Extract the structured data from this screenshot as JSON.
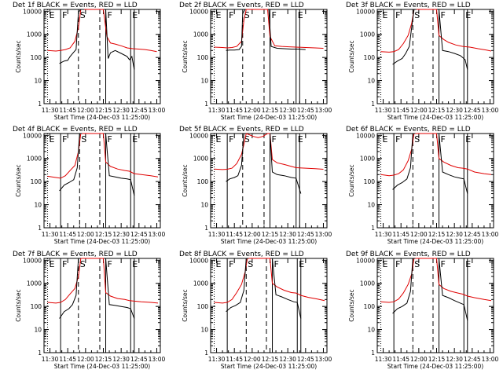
{
  "figure": {
    "background": "#ffffff",
    "series_colors": {
      "events": "#000000",
      "lld": "#e00000"
    },
    "y_axis_label": "Counts/sec",
    "x_axis_label": "Start Time (24-Dec-03 11:25:00)",
    "x_tick_labels": [
      "11:30",
      "11:45",
      "12:00",
      "12:15",
      "12:30",
      "12:45",
      "13:00"
    ],
    "y_tick_labels": [
      "1",
      "10",
      "100",
      "1000",
      "10000"
    ]
  },
  "chart_data": [
    {
      "type": "line",
      "title": "Det  1f  BLACK = Events, RED = LLD",
      "xlabel": "Start Time (24-Dec-03 11:25:00)",
      "ylabel": "Counts/sec",
      "xlim_minutes_after_start": [
        0,
        98
      ],
      "ylim": [
        1,
        12000
      ],
      "yscale": "log",
      "markers": [
        {
          "label": "E",
          "t": 3
        },
        {
          "label": "F",
          "t": 14
        },
        {
          "label": "S",
          "t": 29
        },
        {
          "label": "F",
          "t": 52
        },
        {
          "label": "E",
          "t": 73
        }
      ],
      "events": {
        "t": [
          13,
          17,
          20,
          22,
          25,
          27,
          29,
          31,
          33,
          34
        ],
        "v": [
          55,
          70,
          75,
          110,
          170,
          220,
          9000,
          12000,
          12000,
          12000
        ]
      },
      "events_b": {
        "t": [
          52,
          54,
          56,
          60,
          65,
          70,
          72,
          74,
          76
        ],
        "v": [
          12000,
          90,
          160,
          200,
          150,
          110,
          80,
          110,
          30
        ]
      },
      "lld": {
        "t": [
          3,
          10,
          14,
          18,
          22,
          26,
          29,
          31,
          50,
          53,
          56,
          60,
          65,
          70,
          75,
          80,
          85,
          90,
          95
        ],
        "v": [
          200,
          190,
          200,
          220,
          260,
          500,
          2000,
          12000,
          12000,
          800,
          420,
          380,
          320,
          260,
          240,
          230,
          220,
          200,
          180
        ]
      }
    },
    {
      "type": "line",
      "title": "Det  2f  BLACK = Events, RED = LLD",
      "xlabel": "Start Time (24-Dec-03 11:25:00)",
      "ylabel": "Counts/sec",
      "xlim_minutes_after_start": [
        0,
        98
      ],
      "ylim": [
        1,
        12000
      ],
      "yscale": "log",
      "markers": [
        {
          "label": "E",
          "t": 3
        },
        {
          "label": "F",
          "t": 14
        },
        {
          "label": "S",
          "t": 27
        },
        {
          "label": "F",
          "t": 50
        },
        {
          "label": "E",
          "t": 72
        }
      ],
      "events": {
        "t": [
          13,
          16,
          20,
          24,
          26,
          27,
          29
        ],
        "v": [
          200,
          210,
          210,
          220,
          300,
          8000,
          12000
        ]
      },
      "events_b": {
        "t": [
          49,
          51,
          56,
          62,
          68,
          74,
          80
        ],
        "v": [
          12000,
          300,
          250,
          240,
          230,
          230,
          220
        ]
      },
      "lld": {
        "t": [
          3,
          10,
          14,
          18,
          22,
          26,
          28,
          30,
          48,
          50,
          54,
          60,
          66,
          72,
          80,
          88,
          95
        ],
        "v": [
          280,
          270,
          260,
          270,
          300,
          500,
          4000,
          12000,
          12000,
          800,
          320,
          300,
          290,
          280,
          270,
          260,
          250
        ]
      }
    },
    {
      "type": "line",
      "title": "Det  3f  BLACK = Events, RED = LLD",
      "xlabel": "Start Time (24-Dec-03 11:25:00)",
      "ylabel": "Counts/sec",
      "xlim_minutes_after_start": [
        0,
        98
      ],
      "ylim": [
        1,
        12000
      ],
      "yscale": "log",
      "markers": [
        {
          "label": "E",
          "t": 3
        },
        {
          "label": "F",
          "t": 14
        },
        {
          "label": "S",
          "t": 30
        },
        {
          "label": "F",
          "t": 52
        },
        {
          "label": "E",
          "t": 73
        }
      ],
      "events": {
        "t": [
          13,
          17,
          21,
          24,
          27,
          29,
          31,
          33
        ],
        "v": [
          50,
          70,
          90,
          150,
          300,
          2000,
          12000,
          12000
        ]
      },
      "events_b": {
        "t": [
          52,
          55,
          60,
          65,
          70,
          72,
          74,
          76
        ],
        "v": [
          12000,
          200,
          180,
          150,
          120,
          100,
          80,
          30
        ]
      },
      "lld": {
        "t": [
          3,
          10,
          14,
          18,
          22,
          26,
          29,
          31,
          50,
          52,
          56,
          60,
          66,
          72,
          78,
          85,
          92,
          96
        ],
        "v": [
          180,
          170,
          180,
          220,
          400,
          900,
          3000,
          12000,
          12000,
          900,
          600,
          450,
          350,
          300,
          280,
          240,
          210,
          190
        ]
      }
    },
    {
      "type": "line",
      "title": "Det  4f  BLACK = Events, RED = LLD",
      "xlabel": "Start Time (24-Dec-03 11:25:00)",
      "ylabel": "Counts/sec",
      "xlim_minutes_after_start": [
        0,
        98
      ],
      "ylim": [
        1,
        12000
      ],
      "yscale": "log",
      "markers": [
        {
          "label": "E",
          "t": 3
        },
        {
          "label": "F",
          "t": 14
        },
        {
          "label": "S",
          "t": 30
        },
        {
          "label": "F",
          "t": 52
        },
        {
          "label": "E",
          "t": 73
        }
      ],
      "events": {
        "t": [
          13,
          17,
          21,
          25,
          28,
          30,
          32
        ],
        "v": [
          40,
          70,
          90,
          120,
          400,
          12000,
          12000
        ]
      },
      "events_b": {
        "t": [
          52,
          55,
          60,
          65,
          70,
          73,
          76
        ],
        "v": [
          12000,
          180,
          160,
          140,
          130,
          120,
          25
        ]
      },
      "lld": {
        "t": [
          3,
          10,
          14,
          18,
          22,
          26,
          29,
          31,
          50,
          52,
          56,
          62,
          68,
          72,
          76,
          82,
          90,
          96
        ],
        "v": [
          170,
          150,
          140,
          180,
          300,
          500,
          2000,
          12000,
          12000,
          700,
          450,
          350,
          300,
          280,
          220,
          200,
          180,
          160
        ]
      }
    },
    {
      "type": "line",
      "title": "Det  5f  BLACK = Events, RED = LLD",
      "xlabel": "Start Time (24-Dec-03 11:25:00)",
      "ylabel": "Counts/sec",
      "xlim_minutes_after_start": [
        0,
        98
      ],
      "ylim": [
        1,
        12000
      ],
      "yscale": "log",
      "markers": [
        {
          "label": "E",
          "t": 3
        },
        {
          "label": "F",
          "t": 14
        },
        {
          "label": "S",
          "t": 27
        },
        {
          "label": "F",
          "t": 50
        },
        {
          "label": "E",
          "t": 72
        }
      ],
      "events": {
        "t": [
          13,
          16,
          20,
          23,
          26,
          28,
          30
        ],
        "v": [
          100,
          130,
          150,
          180,
          500,
          12000,
          12000
        ]
      },
      "events_b": {
        "t": [
          50,
          52,
          56,
          62,
          68,
          72,
          76
        ],
        "v": [
          12000,
          260,
          200,
          180,
          150,
          140,
          30
        ]
      },
      "lld": {
        "t": [
          3,
          10,
          14,
          18,
          22,
          26,
          28,
          30,
          36,
          40,
          44,
          48,
          50,
          52,
          56,
          62,
          68,
          72,
          80,
          88,
          95
        ],
        "v": [
          350,
          330,
          340,
          380,
          600,
          1500,
          4000,
          12000,
          9000,
          8000,
          9000,
          12000,
          12000,
          900,
          650,
          550,
          450,
          400,
          380,
          360,
          340
        ]
      }
    },
    {
      "type": "line",
      "title": "Det  6f  BLACK = Events, RED = LLD",
      "xlabel": "Start Time (24-Dec-03 11:25:00)",
      "ylabel": "Counts/sec",
      "xlim_minutes_after_start": [
        0,
        98
      ],
      "ylim": [
        1,
        12000
      ],
      "yscale": "log",
      "markers": [
        {
          "label": "E",
          "t": 3
        },
        {
          "label": "F",
          "t": 14
        },
        {
          "label": "S",
          "t": 30
        },
        {
          "label": "F",
          "t": 52
        },
        {
          "label": "E",
          "t": 73
        }
      ],
      "events": {
        "t": [
          13,
          17,
          21,
          25,
          28,
          30,
          32
        ],
        "v": [
          45,
          70,
          90,
          130,
          400,
          12000,
          12000
        ]
      },
      "events_b": {
        "t": [
          52,
          55,
          60,
          65,
          70,
          73,
          76
        ],
        "v": [
          12000,
          260,
          200,
          160,
          140,
          130,
          30
        ]
      },
      "lld": {
        "t": [
          3,
          10,
          14,
          18,
          22,
          26,
          29,
          31,
          50,
          52,
          56,
          62,
          68,
          72,
          76,
          82,
          90,
          96
        ],
        "v": [
          200,
          180,
          190,
          220,
          320,
          800,
          2500,
          12000,
          12000,
          1000,
          700,
          500,
          400,
          380,
          350,
          260,
          220,
          200
        ]
      }
    },
    {
      "type": "line",
      "title": "Det  7f  BLACK = Events, RED = LLD",
      "xlabel": "Start Time (24-Dec-03 11:25:00)",
      "ylabel": "Counts/sec",
      "xlim_minutes_after_start": [
        0,
        98
      ],
      "ylim": [
        1,
        12000
      ],
      "yscale": "log",
      "markers": [
        {
          "label": "E",
          "t": 3
        },
        {
          "label": "F",
          "t": 14
        },
        {
          "label": "S",
          "t": 29
        },
        {
          "label": "F",
          "t": 52
        },
        {
          "label": "E",
          "t": 73
        }
      ],
      "events": {
        "t": [
          13,
          17,
          21,
          24,
          27,
          29,
          31
        ],
        "v": [
          30,
          60,
          80,
          120,
          300,
          12000,
          12000
        ]
      },
      "events_b": {
        "t": [
          52,
          55,
          60,
          65,
          70,
          73,
          76
        ],
        "v": [
          12000,
          120,
          110,
          100,
          90,
          80,
          30
        ]
      },
      "lld": {
        "t": [
          3,
          10,
          14,
          18,
          22,
          26,
          29,
          31,
          50,
          52,
          56,
          62,
          68,
          72,
          76,
          82,
          90,
          96
        ],
        "v": [
          150,
          140,
          150,
          200,
          350,
          600,
          2000,
          12000,
          12000,
          400,
          280,
          220,
          200,
          180,
          170,
          160,
          150,
          140
        ]
      }
    },
    {
      "type": "line",
      "title": "Det  8f  BLACK = Events, RED = LLD",
      "xlabel": "Start Time (24-Dec-03 11:25:00)",
      "ylabel": "Counts/sec",
      "xlim_minutes_after_start": [
        0,
        98
      ],
      "ylim": [
        1,
        12000
      ],
      "yscale": "log",
      "markers": [
        {
          "label": "E",
          "t": 3
        },
        {
          "label": "F",
          "t": 14
        },
        {
          "label": "S",
          "t": 30
        },
        {
          "label": "F",
          "t": 52
        },
        {
          "label": "E",
          "t": 73
        }
      ],
      "events": {
        "t": [
          13,
          17,
          21,
          25,
          28,
          30,
          32
        ],
        "v": [
          60,
          90,
          110,
          150,
          500,
          12000,
          12000
        ]
      },
      "events_b": {
        "t": [
          52,
          55,
          60,
          65,
          70,
          73,
          76
        ],
        "v": [
          12000,
          320,
          260,
          200,
          160,
          150,
          30
        ]
      },
      "lld": {
        "t": [
          3,
          10,
          14,
          18,
          22,
          26,
          29,
          31,
          50,
          52,
          56,
          62,
          68,
          72,
          76,
          82,
          90,
          96
        ],
        "v": [
          150,
          140,
          150,
          200,
          400,
          900,
          3000,
          12000,
          12000,
          1000,
          700,
          500,
          400,
          380,
          300,
          250,
          210,
          180
        ]
      }
    },
    {
      "type": "line",
      "title": "Det  9f  BLACK = Events, RED = LLD",
      "xlabel": "Start Time (24-Dec-03 11:25:00)",
      "ylabel": "Counts/sec",
      "xlim_minutes_after_start": [
        0,
        98
      ],
      "ylim": [
        1,
        12000
      ],
      "yscale": "log",
      "markers": [
        {
          "label": "E",
          "t": 3
        },
        {
          "label": "F",
          "t": 14
        },
        {
          "label": "S",
          "t": 30
        },
        {
          "label": "F",
          "t": 52
        },
        {
          "label": "E",
          "t": 73
        }
      ],
      "events": {
        "t": [
          13,
          17,
          21,
          25,
          28,
          30,
          32
        ],
        "v": [
          50,
          80,
          100,
          140,
          450,
          12000,
          12000
        ]
      },
      "events_b": {
        "t": [
          52,
          55,
          60,
          65,
          70,
          73,
          76
        ],
        "v": [
          12000,
          300,
          240,
          180,
          140,
          120,
          25
        ]
      },
      "lld": {
        "t": [
          3,
          10,
          14,
          18,
          22,
          26,
          29,
          31,
          50,
          52,
          56,
          62,
          68,
          72,
          76,
          82,
          90,
          96
        ],
        "v": [
          160,
          150,
          160,
          210,
          380,
          900,
          2500,
          12000,
          12000,
          900,
          600,
          450,
          380,
          340,
          280,
          240,
          200,
          180
        ]
      }
    }
  ]
}
